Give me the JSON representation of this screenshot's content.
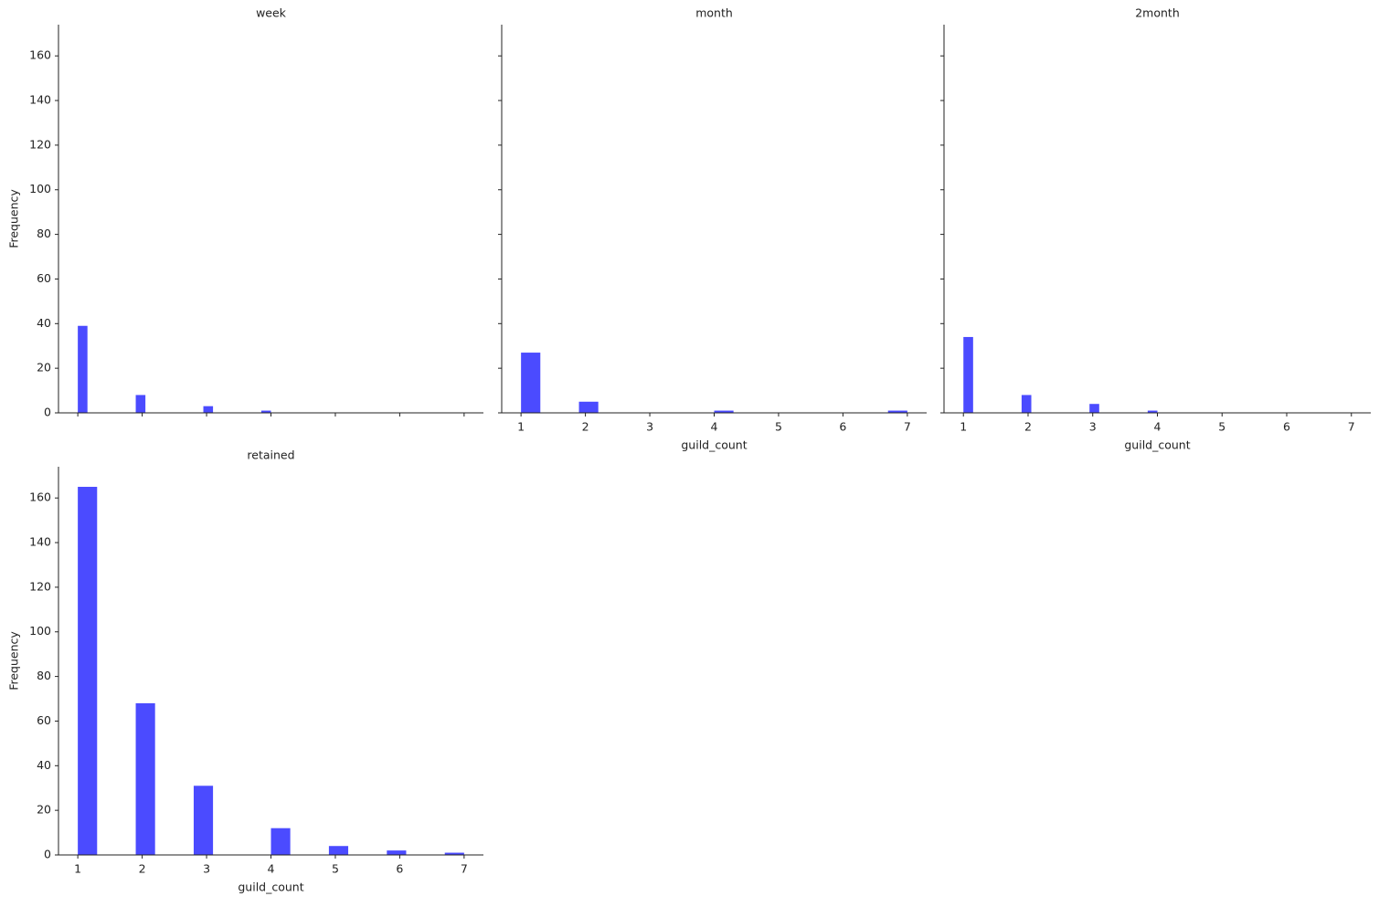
{
  "chart_data": [
    {
      "type": "histogram",
      "title": "week",
      "ylabel": "Frequency",
      "color": "#4b4bff",
      "bins": [
        1,
        1.15,
        1.3,
        1.45,
        1.6,
        1.75,
        1.9,
        2.05,
        2.2,
        2.35,
        2.5,
        2.65,
        2.8,
        2.95,
        3.1,
        3.25,
        3.4,
        3.55,
        3.7,
        3.85,
        4
      ],
      "values": [
        39,
        0,
        0,
        0,
        0,
        0,
        8,
        0,
        0,
        0,
        0,
        0,
        0,
        3,
        0,
        0,
        0,
        0,
        0,
        1
      ],
      "xlim": [
        0.7,
        7.3
      ],
      "xticks": [
        1,
        2,
        3,
        4,
        5,
        6,
        7
      ],
      "show_xtick_labels": false,
      "ylim": [
        0,
        174
      ],
      "yticks": [
        0,
        20,
        40,
        60,
        80,
        100,
        120,
        140,
        160
      ],
      "show_ytick_labels": true
    },
    {
      "type": "histogram",
      "title": "month",
      "xlabel": "guild_count",
      "color": "#4b4bff",
      "bins": [
        1,
        1.3,
        1.6,
        1.9,
        2.2,
        2.5,
        2.8,
        3.1,
        3.4,
        3.7,
        4,
        4.3,
        4.6,
        4.9,
        5.2,
        5.5,
        5.8,
        6.1,
        6.4,
        6.7,
        7
      ],
      "values": [
        27,
        0,
        0,
        5,
        0,
        0,
        0,
        0,
        0,
        0,
        1,
        0,
        0,
        0,
        0,
        0,
        0,
        0,
        0,
        1
      ],
      "xlim": [
        0.7,
        7.3
      ],
      "xticks": [
        1,
        2,
        3,
        4,
        5,
        6,
        7
      ],
      "show_xtick_labels": true,
      "ylim": [
        0,
        174
      ],
      "yticks": [
        0,
        20,
        40,
        60,
        80,
        100,
        120,
        140,
        160
      ],
      "show_ytick_labels": false
    },
    {
      "type": "histogram",
      "title": "2month",
      "xlabel": "guild_count",
      "color": "#4b4bff",
      "bins": [
        1,
        1.15,
        1.3,
        1.45,
        1.6,
        1.75,
        1.9,
        2.05,
        2.2,
        2.35,
        2.5,
        2.65,
        2.8,
        2.95,
        3.1,
        3.25,
        3.4,
        3.55,
        3.7,
        3.85,
        4
      ],
      "values": [
        34,
        0,
        0,
        0,
        0,
        0,
        8,
        0,
        0,
        0,
        0,
        0,
        0,
        4,
        0,
        0,
        0,
        0,
        0,
        1
      ],
      "xlim": [
        0.7,
        7.3
      ],
      "xticks": [
        1,
        2,
        3,
        4,
        5,
        6,
        7
      ],
      "show_xtick_labels": true,
      "ylim": [
        0,
        174
      ],
      "yticks": [
        0,
        20,
        40,
        60,
        80,
        100,
        120,
        140,
        160
      ],
      "show_ytick_labels": false
    },
    {
      "type": "histogram",
      "title": "retained",
      "xlabel": "guild_count",
      "ylabel": "Frequency",
      "color": "#4b4bff",
      "bins": [
        1,
        1.3,
        1.6,
        1.9,
        2.2,
        2.5,
        2.8,
        3.1,
        3.4,
        3.7,
        4,
        4.3,
        4.6,
        4.9,
        5.2,
        5.5,
        5.8,
        6.1,
        6.4,
        6.7,
        7
      ],
      "values": [
        165,
        0,
        0,
        68,
        0,
        0,
        31,
        0,
        0,
        0,
        12,
        0,
        0,
        4,
        0,
        0,
        2,
        0,
        0,
        1
      ],
      "xlim": [
        0.7,
        7.3
      ],
      "xticks": [
        1,
        2,
        3,
        4,
        5,
        6,
        7
      ],
      "show_xtick_labels": true,
      "ylim": [
        0,
        174
      ],
      "yticks": [
        0,
        20,
        40,
        60,
        80,
        100,
        120,
        140,
        160
      ],
      "show_ytick_labels": true
    }
  ]
}
